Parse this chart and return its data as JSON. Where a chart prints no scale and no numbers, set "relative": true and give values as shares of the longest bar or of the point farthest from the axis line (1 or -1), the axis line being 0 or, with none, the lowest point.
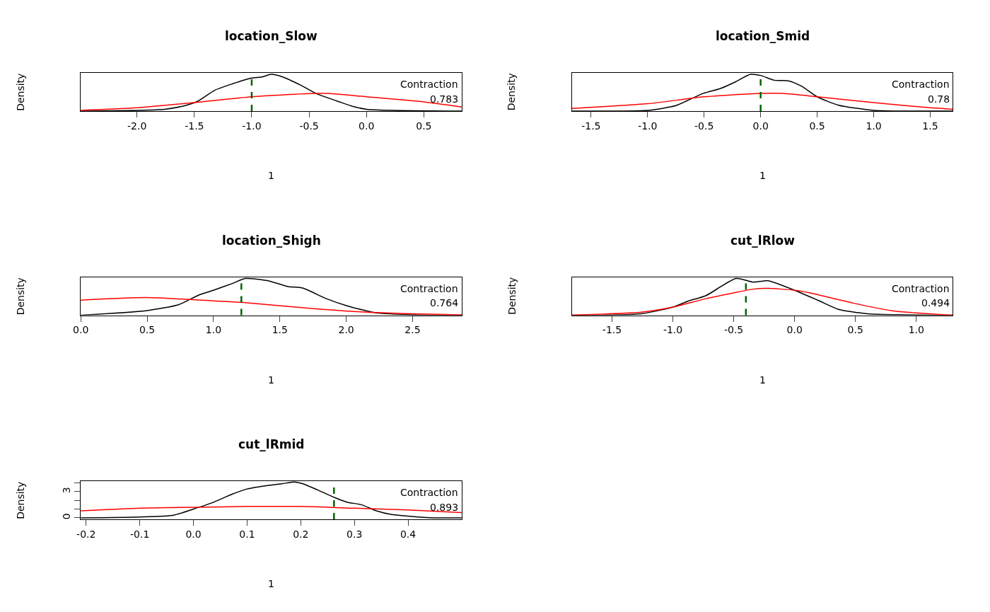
{
  "chart_data": [
    {
      "type": "line",
      "title": "location_Slow",
      "xlabel": "1",
      "ylabel": "Density",
      "relative": true,
      "xlim": [
        -2.49,
        0.83
      ],
      "xticks": [
        {
          "value": -2,
          "label": "-2.0"
        },
        -1.5,
        {
          "value": -1,
          "label": "-1.0"
        },
        -0.5,
        {
          "value": 0,
          "label": "0.0"
        },
        0.5
      ],
      "series": [
        {
          "color": "#000000",
          "x": [
            -2.49,
            -2.0,
            -1.76,
            -1.58,
            -1.47,
            -1.32,
            -1.17,
            -1.0,
            -0.91,
            -0.83,
            -0.73,
            -0.57,
            -0.44,
            -0.29,
            -0.11,
            0.0,
            0.23,
            0.83
          ],
          "values": [
            0,
            0.02,
            0.05,
            0.15,
            0.27,
            0.57,
            0.74,
            0.9,
            0.93,
            1.0,
            0.93,
            0.7,
            0.48,
            0.31,
            0.12,
            0.05,
            0.02,
            0
          ]
        },
        {
          "color": "#ff0000",
          "x": [
            -2.49,
            -2.0,
            -1.5,
            -1.0,
            -0.46,
            -0.34,
            0.0,
            0.5,
            0.83
          ],
          "values": [
            0.02,
            0.09,
            0.23,
            0.39,
            0.48,
            0.48,
            0.39,
            0.25,
            0.11
          ]
        }
      ],
      "ref_lines": [
        {
          "axis": "x",
          "value": -1.0,
          "color": "#006400",
          "line_style": "dashed"
        }
      ],
      "annotations": [
        "Contraction",
        "0.783"
      ]
    },
    {
      "type": "line",
      "title": "location_Smid",
      "xlabel": "1",
      "ylabel": "Density",
      "relative": true,
      "xlim": [
        -1.67,
        1.7
      ],
      "xticks": [
        -1.5,
        {
          "value": -1,
          "label": "-1.0"
        },
        -0.5,
        {
          "value": 0,
          "label": "0.0"
        },
        0.5,
        {
          "value": 1,
          "label": "1.0"
        },
        1.5
      ],
      "series": [
        {
          "color": "#000000",
          "x": [
            -1.67,
            -1.0,
            -0.75,
            -0.51,
            -0.35,
            -0.22,
            -0.09,
            0.0,
            0.12,
            0.25,
            0.36,
            0.5,
            0.69,
            1.0,
            1.7
          ],
          "values": [
            0,
            0.02,
            0.15,
            0.48,
            0.62,
            0.8,
            1.0,
            0.97,
            0.84,
            0.82,
            0.68,
            0.39,
            0.16,
            0.02,
            0
          ]
        },
        {
          "color": "#ff0000",
          "x": [
            -1.67,
            -1.0,
            -0.5,
            0.0,
            0.2,
            0.5,
            1.0,
            1.5,
            1.7
          ],
          "values": [
            0.07,
            0.2,
            0.39,
            0.48,
            0.48,
            0.39,
            0.23,
            0.09,
            0.05
          ]
        }
      ],
      "ref_lines": [
        {
          "axis": "x",
          "value": 0.0,
          "color": "#006400",
          "line_style": "dashed"
        }
      ],
      "annotations": [
        "Contraction",
        "0.78"
      ]
    },
    {
      "type": "line",
      "title": "location_Shigh",
      "xlabel": "1",
      "ylabel": "Density",
      "relative": true,
      "xlim": [
        0.0,
        2.87
      ],
      "xticks": [
        {
          "value": 0,
          "label": "0.0"
        },
        0.5,
        {
          "value": 1,
          "label": "1.0"
        },
        1.5,
        {
          "value": 2,
          "label": "2.0"
        },
        2.5
      ],
      "series": [
        {
          "color": "#000000",
          "x": [
            0.0,
            0.49,
            0.74,
            0.89,
            1.0,
            1.14,
            1.24,
            1.41,
            1.56,
            1.67,
            1.85,
            2.01,
            2.23,
            2.5,
            2.87
          ],
          "values": [
            0,
            0.12,
            0.29,
            0.55,
            0.68,
            0.86,
            1.0,
            0.94,
            0.78,
            0.74,
            0.45,
            0.25,
            0.06,
            0.01,
            0
          ]
        },
        {
          "color": "#ff0000",
          "x": [
            0.0,
            0.49,
            1.0,
            1.21,
            1.68,
            2.01,
            2.5,
            2.87
          ],
          "values": [
            0.41,
            0.48,
            0.39,
            0.35,
            0.2,
            0.11,
            0.04,
            0.01
          ]
        }
      ],
      "ref_lines": [
        {
          "axis": "x",
          "value": 1.21,
          "color": "#006400",
          "line_style": "dashed"
        }
      ],
      "annotations": [
        "Contraction",
        "0.764"
      ]
    },
    {
      "type": "line",
      "title": "cut_lRlow",
      "xlabel": "1",
      "ylabel": "Density",
      "relative": true,
      "xlim": [
        -1.83,
        1.3
      ],
      "xticks": [
        -1.5,
        {
          "value": -1,
          "label": "-1.0"
        },
        -0.5,
        {
          "value": 0,
          "label": "0.0"
        },
        0.5,
        {
          "value": 1,
          "label": "1.0"
        }
      ],
      "series": [
        {
          "color": "#000000",
          "x": [
            -1.83,
            -1.26,
            -1.0,
            -0.87,
            -0.73,
            -0.48,
            -0.34,
            -0.22,
            0.0,
            0.19,
            0.36,
            0.6,
            1.3
          ],
          "values": [
            0,
            0.04,
            0.22,
            0.39,
            0.53,
            1.0,
            0.9,
            0.94,
            0.68,
            0.41,
            0.16,
            0.04,
            0
          ]
        },
        {
          "color": "#ff0000",
          "x": [
            -1.83,
            -1.26,
            -1.0,
            -0.73,
            -0.51,
            -0.34,
            -0.22,
            0.0,
            0.12,
            0.48,
            0.8,
            1.3
          ],
          "values": [
            0,
            0.08,
            0.22,
            0.45,
            0.6,
            0.71,
            0.73,
            0.68,
            0.61,
            0.33,
            0.12,
            0
          ]
        }
      ],
      "ref_lines": [
        {
          "axis": "x",
          "value": -0.4,
          "color": "#006400",
          "line_style": "dashed"
        }
      ],
      "annotations": [
        "Contraction",
        "0.494"
      ]
    },
    {
      "type": "line",
      "title": "cut_lRmid",
      "xlabel": "1",
      "ylabel": "Density",
      "xlim": [
        -0.21,
        0.5
      ],
      "xticks": [
        -0.2,
        -0.1,
        {
          "value": 0,
          "label": "0.0"
        },
        0.1,
        0.2,
        0.3,
        0.4
      ],
      "ylim": [
        -0.17,
        4.2
      ],
      "yticks": [
        0,
        {
          "value": 1,
          "label": null
        },
        {
          "value": 2,
          "label": null
        },
        3,
        {
          "value": 4,
          "label": null
        }
      ],
      "series": [
        {
          "color": "#000000",
          "x": [
            -0.21,
            -0.1,
            -0.037,
            0.0,
            0.034,
            0.072,
            0.1,
            0.138,
            0.165,
            0.187,
            0.204,
            0.231,
            0.264,
            0.286,
            0.313,
            0.341,
            0.368,
            0.4,
            0.45,
            0.5
          ],
          "values": [
            0,
            0.1,
            0.3,
            1.0,
            1.7,
            2.7,
            3.3,
            3.7,
            3.9,
            4.1,
            3.9,
            3.2,
            2.3,
            1.8,
            1.5,
            0.8,
            0.4,
            0.2,
            0,
            0
          ]
        },
        {
          "color": "#ff0000",
          "x": [
            -0.21,
            -0.1,
            0.0,
            0.1,
            0.2,
            0.3,
            0.4,
            0.5
          ],
          "values": [
            0.8,
            1.1,
            1.2,
            1.3,
            1.3,
            1.1,
            0.9,
            0.6
          ]
        }
      ],
      "ref_lines": [
        {
          "axis": "x",
          "value": 0.262,
          "color": "#006400",
          "line_style": "dashed"
        }
      ],
      "annotations": [
        "Contraction",
        "0.893"
      ]
    }
  ]
}
